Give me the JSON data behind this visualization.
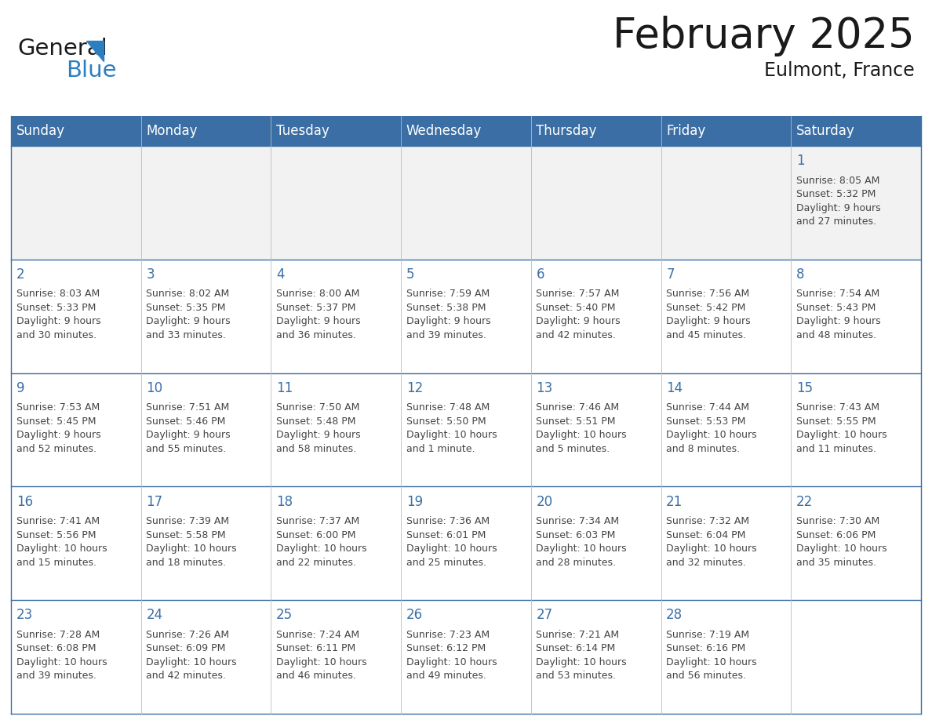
{
  "title": "February 2025",
  "subtitle": "Eulmont, France",
  "header_bg_color": "#3a6ea5",
  "header_text_color": "#ffffff",
  "border_color": "#3a6ea5",
  "day_number_color": "#3a6ea5",
  "cell_text_color": "#444444",
  "week1_bg": "#f2f2f2",
  "cell_bg": "#ffffff",
  "days_of_week": [
    "Sunday",
    "Monday",
    "Tuesday",
    "Wednesday",
    "Thursday",
    "Friday",
    "Saturday"
  ],
  "weeks": [
    [
      {
        "day": 0,
        "text": ""
      },
      {
        "day": 0,
        "text": ""
      },
      {
        "day": 0,
        "text": ""
      },
      {
        "day": 0,
        "text": ""
      },
      {
        "day": 0,
        "text": ""
      },
      {
        "day": 0,
        "text": ""
      },
      {
        "day": 1,
        "text": "Sunrise: 8:05 AM\nSunset: 5:32 PM\nDaylight: 9 hours\nand 27 minutes."
      }
    ],
    [
      {
        "day": 2,
        "text": "Sunrise: 8:03 AM\nSunset: 5:33 PM\nDaylight: 9 hours\nand 30 minutes."
      },
      {
        "day": 3,
        "text": "Sunrise: 8:02 AM\nSunset: 5:35 PM\nDaylight: 9 hours\nand 33 minutes."
      },
      {
        "day": 4,
        "text": "Sunrise: 8:00 AM\nSunset: 5:37 PM\nDaylight: 9 hours\nand 36 minutes."
      },
      {
        "day": 5,
        "text": "Sunrise: 7:59 AM\nSunset: 5:38 PM\nDaylight: 9 hours\nand 39 minutes."
      },
      {
        "day": 6,
        "text": "Sunrise: 7:57 AM\nSunset: 5:40 PM\nDaylight: 9 hours\nand 42 minutes."
      },
      {
        "day": 7,
        "text": "Sunrise: 7:56 AM\nSunset: 5:42 PM\nDaylight: 9 hours\nand 45 minutes."
      },
      {
        "day": 8,
        "text": "Sunrise: 7:54 AM\nSunset: 5:43 PM\nDaylight: 9 hours\nand 48 minutes."
      }
    ],
    [
      {
        "day": 9,
        "text": "Sunrise: 7:53 AM\nSunset: 5:45 PM\nDaylight: 9 hours\nand 52 minutes."
      },
      {
        "day": 10,
        "text": "Sunrise: 7:51 AM\nSunset: 5:46 PM\nDaylight: 9 hours\nand 55 minutes."
      },
      {
        "day": 11,
        "text": "Sunrise: 7:50 AM\nSunset: 5:48 PM\nDaylight: 9 hours\nand 58 minutes."
      },
      {
        "day": 12,
        "text": "Sunrise: 7:48 AM\nSunset: 5:50 PM\nDaylight: 10 hours\nand 1 minute."
      },
      {
        "day": 13,
        "text": "Sunrise: 7:46 AM\nSunset: 5:51 PM\nDaylight: 10 hours\nand 5 minutes."
      },
      {
        "day": 14,
        "text": "Sunrise: 7:44 AM\nSunset: 5:53 PM\nDaylight: 10 hours\nand 8 minutes."
      },
      {
        "day": 15,
        "text": "Sunrise: 7:43 AM\nSunset: 5:55 PM\nDaylight: 10 hours\nand 11 minutes."
      }
    ],
    [
      {
        "day": 16,
        "text": "Sunrise: 7:41 AM\nSunset: 5:56 PM\nDaylight: 10 hours\nand 15 minutes."
      },
      {
        "day": 17,
        "text": "Sunrise: 7:39 AM\nSunset: 5:58 PM\nDaylight: 10 hours\nand 18 minutes."
      },
      {
        "day": 18,
        "text": "Sunrise: 7:37 AM\nSunset: 6:00 PM\nDaylight: 10 hours\nand 22 minutes."
      },
      {
        "day": 19,
        "text": "Sunrise: 7:36 AM\nSunset: 6:01 PM\nDaylight: 10 hours\nand 25 minutes."
      },
      {
        "day": 20,
        "text": "Sunrise: 7:34 AM\nSunset: 6:03 PM\nDaylight: 10 hours\nand 28 minutes."
      },
      {
        "day": 21,
        "text": "Sunrise: 7:32 AM\nSunset: 6:04 PM\nDaylight: 10 hours\nand 32 minutes."
      },
      {
        "day": 22,
        "text": "Sunrise: 7:30 AM\nSunset: 6:06 PM\nDaylight: 10 hours\nand 35 minutes."
      }
    ],
    [
      {
        "day": 23,
        "text": "Sunrise: 7:28 AM\nSunset: 6:08 PM\nDaylight: 10 hours\nand 39 minutes."
      },
      {
        "day": 24,
        "text": "Sunrise: 7:26 AM\nSunset: 6:09 PM\nDaylight: 10 hours\nand 42 minutes."
      },
      {
        "day": 25,
        "text": "Sunrise: 7:24 AM\nSunset: 6:11 PM\nDaylight: 10 hours\nand 46 minutes."
      },
      {
        "day": 26,
        "text": "Sunrise: 7:23 AM\nSunset: 6:12 PM\nDaylight: 10 hours\nand 49 minutes."
      },
      {
        "day": 27,
        "text": "Sunrise: 7:21 AM\nSunset: 6:14 PM\nDaylight: 10 hours\nand 53 minutes."
      },
      {
        "day": 28,
        "text": "Sunrise: 7:19 AM\nSunset: 6:16 PM\nDaylight: 10 hours\nand 56 minutes."
      },
      {
        "day": 0,
        "text": ""
      }
    ]
  ],
  "logo_general_color": "#1a1a1a",
  "logo_blue_color": "#2b7fc1",
  "title_fontsize": 38,
  "subtitle_fontsize": 17,
  "header_fontsize": 12,
  "day_number_fontsize": 12,
  "cell_text_fontsize": 9
}
